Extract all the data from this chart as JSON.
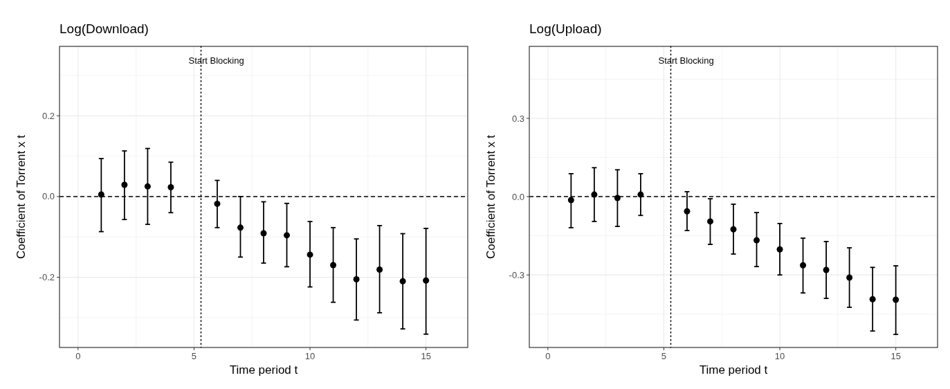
{
  "chart_data": [
    {
      "type": "scatter",
      "title": "Log(Download)",
      "xlabel": "Time period t",
      "ylabel": "Coefficient of Torrent x t",
      "x": [
        1,
        2,
        3,
        4,
        6,
        7,
        8,
        9,
        10,
        11,
        12,
        13,
        14,
        15
      ],
      "series": [
        {
          "color": "#000000",
          "values": [
            0.005,
            0.029,
            0.025,
            0.023,
            -0.018,
            -0.077,
            -0.091,
            -0.096,
            -0.144,
            -0.17,
            -0.205,
            -0.181,
            -0.21,
            -0.208
          ],
          "errors": [
            [
              -0.087,
              0.094
            ],
            [
              -0.057,
              0.113
            ],
            [
              -0.069,
              0.119
            ],
            [
              -0.04,
              0.085
            ],
            [
              -0.077,
              0.04
            ],
            [
              -0.15,
              0.0
            ],
            [
              -0.165,
              -0.013
            ],
            [
              -0.174,
              -0.017
            ],
            [
              -0.224,
              -0.062
            ],
            [
              -0.262,
              -0.077
            ],
            [
              -0.306,
              -0.105
            ],
            [
              -0.288,
              -0.072
            ],
            [
              -0.328,
              -0.092
            ],
            [
              -0.341,
              -0.079
            ]
          ]
        }
      ],
      "xlim": [
        -0.8,
        16.8
      ],
      "xticks": [
        0,
        5,
        10,
        15
      ],
      "ylim": [
        -0.374,
        0.372
      ],
      "yticks": [
        {
          "value": -0.2,
          "label": "-0.2"
        },
        {
          "value": 0,
          "label": "0.0"
        },
        {
          "value": 0.2,
          "label": "0.2"
        }
      ],
      "ref_lines": [
        {
          "axis": "y",
          "value": 0,
          "line_style": "dashed",
          "color": "#000000"
        },
        {
          "axis": "x",
          "value": 5.3,
          "label": "Start Blocking",
          "line_style": "dotted",
          "color": "#000000"
        }
      ],
      "grid": true,
      "marker": "circle"
    },
    {
      "type": "scatter",
      "title": "Log(Upload)",
      "xlabel": "Time period t",
      "ylabel": "Coefficient of Torrent x t",
      "x": [
        1,
        2,
        3,
        4,
        6,
        7,
        8,
        9,
        10,
        11,
        12,
        13,
        14,
        15
      ],
      "series": [
        {
          "color": "#000000",
          "values": [
            -0.013,
            0.008,
            -0.005,
            0.008,
            -0.056,
            -0.095,
            -0.125,
            -0.167,
            -0.202,
            -0.263,
            -0.281,
            -0.31,
            -0.393,
            -0.395
          ],
          "errors": [
            [
              -0.119,
              0.088
            ],
            [
              -0.095,
              0.111
            ],
            [
              -0.114,
              0.103
            ],
            [
              -0.072,
              0.088
            ],
            [
              -0.13,
              0.019
            ],
            [
              -0.183,
              -0.008
            ],
            [
              -0.22,
              -0.029
            ],
            [
              -0.268,
              -0.061
            ],
            [
              -0.3,
              -0.103
            ],
            [
              -0.369,
              -0.159
            ],
            [
              -0.39,
              -0.172
            ],
            [
              -0.424,
              -0.196
            ],
            [
              -0.515,
              -0.271
            ],
            [
              -0.528,
              -0.265
            ]
          ]
        }
      ],
      "xlim": [
        -0.8,
        16.8
      ],
      "xticks": [
        0,
        5,
        10,
        15
      ],
      "ylim": [
        -0.578,
        0.576
      ],
      "yticks": [
        {
          "value": -0.3,
          "label": "-0.3"
        },
        {
          "value": 0,
          "label": "0.0"
        },
        {
          "value": 0.3,
          "label": "0.3"
        }
      ],
      "ref_lines": [
        {
          "axis": "y",
          "value": 0,
          "line_style": "dashed",
          "color": "#000000"
        },
        {
          "axis": "x",
          "value": 5.3,
          "label": "Start Blocking",
          "line_style": "dotted",
          "color": "#000000"
        }
      ],
      "grid": true,
      "marker": "circle"
    }
  ]
}
